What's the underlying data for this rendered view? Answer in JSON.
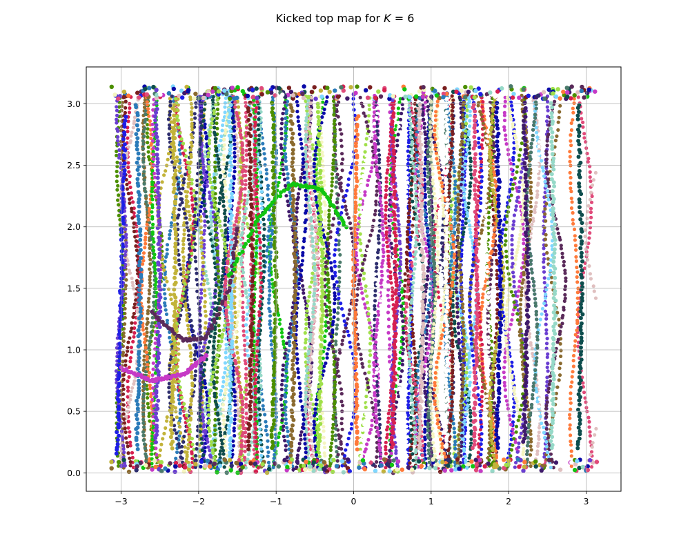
{
  "chart_data": {
    "type": "scatter",
    "title": {
      "prefix": "Kicked top map for ",
      "var": "K",
      "suffix": " = 6"
    },
    "xlabel": "",
    "ylabel": "",
    "xlim": [
      -3.45,
      3.45
    ],
    "ylim": [
      -0.15,
      3.3
    ],
    "xticks": [
      -3,
      -2,
      -1,
      0,
      1,
      2,
      3
    ],
    "yticks": [
      0.0,
      0.5,
      1.0,
      1.5,
      2.0,
      2.5,
      3.0
    ],
    "xtick_labels": [
      "−3",
      "−2",
      "−1",
      "0",
      "1",
      "2",
      "3"
    ],
    "ytick_labels": [
      "0.0",
      "0.5",
      "1.0",
      "1.5",
      "2.0",
      "2.5",
      "3.0"
    ],
    "grid": true,
    "legend": "none",
    "x_domain": [
      -3.14159,
      3.14159
    ],
    "y_domain": [
      0.0,
      3.14159
    ],
    "description_of_series": "many trajectories of the kicked top map, each a different color, densely filling the phase space",
    "palette": [
      "#0a0aa8",
      "#11c511",
      "#1e1ee6",
      "#7a1f1f",
      "#d62050",
      "#3f1a6b",
      "#c63ac6",
      "#2b7bb9",
      "#4c8f00",
      "#e0c0c0",
      "#96d9c8",
      "#f5f5c0",
      "#6a3ed1",
      "#8a6a2f",
      "#ffffff",
      "#0d4d4d",
      "#4a7a6a",
      "#c2b33a",
      "#a0e04a",
      "#e04a7a",
      "#5a2a5a",
      "#2e2e6e",
      "#7fd7ff",
      "#ff7a3a"
    ],
    "series": [
      {
        "kind": "vertical",
        "points": [
          [
            -3.05,
            0.15
          ],
          [
            -3.0,
            1.5
          ],
          [
            -2.95,
            2.9
          ]
        ]
      },
      {
        "kind": "vertical",
        "points": [
          [
            -2.8,
            0.2
          ],
          [
            -2.75,
            1.5
          ],
          [
            -2.8,
            3.0
          ]
        ]
      },
      {
        "kind": "vertical",
        "points": [
          [
            -2.55,
            0.25
          ],
          [
            -2.5,
            1.5
          ],
          [
            -2.55,
            3.0
          ]
        ]
      },
      {
        "kind": "vertical",
        "points": [
          [
            -2.35,
            0.2
          ],
          [
            -2.3,
            1.6
          ],
          [
            -2.32,
            3.0
          ]
        ]
      },
      {
        "kind": "vertical",
        "points": [
          [
            -1.6,
            0.1
          ],
          [
            -1.57,
            1.5
          ],
          [
            -1.6,
            3.1
          ]
        ]
      },
      {
        "kind": "vertical",
        "points": [
          [
            -1.35,
            0.2
          ],
          [
            -1.3,
            1.5
          ],
          [
            -1.35,
            3.0
          ]
        ]
      },
      {
        "kind": "vertical",
        "points": [
          [
            -1.05,
            0.2
          ],
          [
            -1.0,
            1.5
          ],
          [
            -1.05,
            3.0
          ]
        ]
      },
      {
        "kind": "vertical",
        "points": [
          [
            -0.8,
            0.15
          ],
          [
            -0.75,
            1.5
          ],
          [
            -0.8,
            3.0
          ]
        ]
      },
      {
        "kind": "vertical",
        "points": [
          [
            -0.45,
            0.2
          ],
          [
            -0.4,
            1.5
          ],
          [
            -0.45,
            3.0
          ]
        ]
      },
      {
        "kind": "vertical",
        "points": [
          [
            0.05,
            0.2
          ],
          [
            0.0,
            1.5
          ],
          [
            0.05,
            2.9
          ]
        ]
      },
      {
        "kind": "vertical",
        "points": [
          [
            0.5,
            0.2
          ],
          [
            0.55,
            1.5
          ],
          [
            0.5,
            3.0
          ]
        ]
      },
      {
        "kind": "vertical",
        "points": [
          [
            0.85,
            0.2
          ],
          [
            0.9,
            1.5
          ],
          [
            0.85,
            3.0
          ]
        ]
      },
      {
        "kind": "vertical",
        "points": [
          [
            1.2,
            0.2
          ],
          [
            1.2,
            1.5
          ],
          [
            1.2,
            3.0
          ]
        ]
      },
      {
        "kind": "vertical",
        "points": [
          [
            1.55,
            0.2
          ],
          [
            1.6,
            1.5
          ],
          [
            1.55,
            3.0
          ]
        ]
      },
      {
        "kind": "vertical",
        "points": [
          [
            1.85,
            0.2
          ],
          [
            1.9,
            1.5
          ],
          [
            1.85,
            3.0
          ]
        ]
      },
      {
        "kind": "vertical",
        "points": [
          [
            2.2,
            0.25
          ],
          [
            2.25,
            1.5
          ],
          [
            2.2,
            3.0
          ]
        ]
      },
      {
        "kind": "vertical",
        "points": [
          [
            2.55,
            0.2
          ],
          [
            2.6,
            1.5
          ],
          [
            2.55,
            3.0
          ]
        ]
      },
      {
        "kind": "vertical",
        "points": [
          [
            2.9,
            0.2
          ],
          [
            2.95,
            1.5
          ],
          [
            2.9,
            3.0
          ]
        ]
      },
      {
        "kind": "arc",
        "points": [
          [
            -2.6,
            1.3
          ],
          [
            -2.2,
            1.08
          ],
          [
            -1.9,
            1.1
          ],
          [
            -1.6,
            1.5
          ],
          [
            -1.5,
            2.0
          ]
        ]
      },
      {
        "kind": "arc",
        "points": [
          [
            -1.6,
            1.6
          ],
          [
            -1.2,
            2.1
          ],
          [
            -0.8,
            2.35
          ],
          [
            -0.4,
            2.3
          ],
          [
            -0.1,
            2.0
          ]
        ]
      },
      {
        "kind": "arc",
        "points": [
          [
            -3.0,
            0.85
          ],
          [
            -2.6,
            0.75
          ],
          [
            -2.2,
            0.8
          ],
          [
            -1.9,
            0.95
          ]
        ]
      },
      {
        "kind": "band",
        "points": [
          [
            -3.1,
            3.1
          ],
          [
            3.1,
            3.1
          ]
        ]
      },
      {
        "kind": "band",
        "points": [
          [
            -3.1,
            0.05
          ],
          [
            3.1,
            0.05
          ]
        ]
      }
    ]
  }
}
